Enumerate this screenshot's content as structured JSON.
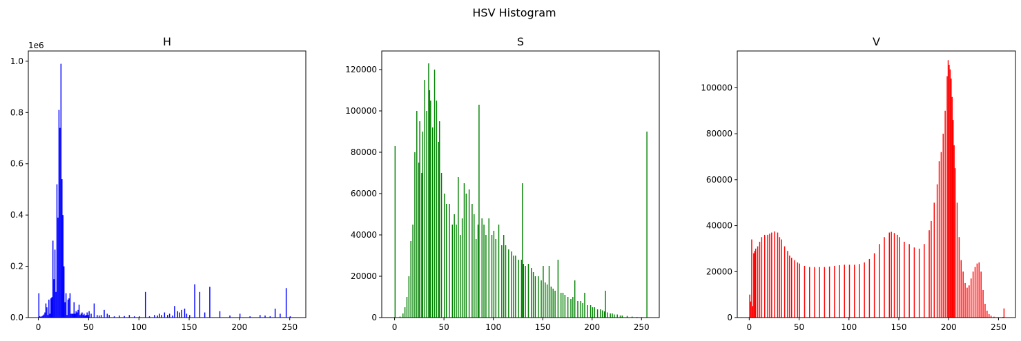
{
  "figure": {
    "suptitle": "HSV Histogram"
  },
  "chart_data": [
    {
      "type": "bar",
      "title": "H",
      "color": "#0000ff",
      "offset_text": "1e6",
      "xlim": [
        -10,
        266
      ],
      "ylim": [
        0,
        1040000
      ],
      "xticks": [
        0,
        50,
        100,
        150,
        200,
        250
      ],
      "yticks": [
        0,
        200000,
        400000,
        600000,
        800000,
        1000000
      ],
      "ytick_labels": [
        "0.0",
        "0.2",
        "0.4",
        "0.6",
        "0.8",
        "1.0"
      ],
      "grid": false,
      "x": [
        0,
        1,
        2,
        3,
        4,
        5,
        6,
        7,
        8,
        9,
        10,
        11,
        12,
        13,
        14,
        15,
        16,
        17,
        18,
        19,
        20,
        21,
        22,
        23,
        24,
        25,
        26,
        27,
        28,
        29,
        30,
        31,
        32,
        33,
        34,
        35,
        36,
        37,
        38,
        39,
        40,
        41,
        42,
        43,
        44,
        45,
        46,
        47,
        48,
        49,
        50,
        52,
        55,
        58,
        60,
        62,
        65,
        68,
        70,
        75,
        80,
        85,
        90,
        95,
        100,
        106,
        110,
        115,
        118,
        120,
        122,
        125,
        128,
        130,
        133,
        135,
        138,
        140,
        142,
        145,
        147,
        150,
        155,
        160,
        165,
        170,
        180,
        190,
        200,
        210,
        220,
        225,
        230,
        235,
        240,
        246,
        250
      ],
      "values": [
        95000,
        5000,
        3000,
        5000,
        8000,
        12000,
        20000,
        55000,
        40000,
        10000,
        70000,
        15000,
        75000,
        80000,
        300000,
        150000,
        265000,
        100000,
        520000,
        390000,
        810000,
        740000,
        990000,
        540000,
        400000,
        200000,
        60000,
        95000,
        10000,
        70000,
        75000,
        95000,
        15000,
        15000,
        15000,
        60000,
        15000,
        25000,
        20000,
        30000,
        50000,
        10000,
        15000,
        20000,
        10000,
        15000,
        8000,
        10000,
        20000,
        10000,
        25000,
        15000,
        55000,
        10000,
        8000,
        10000,
        30000,
        15000,
        10000,
        5000,
        8000,
        6000,
        10000,
        5000,
        5000,
        100000,
        5000,
        10000,
        8000,
        15000,
        10000,
        20000,
        10000,
        15000,
        8000,
        45000,
        25000,
        20000,
        30000,
        35000,
        15000,
        10000,
        130000,
        100000,
        20000,
        120000,
        25000,
        8000,
        15000,
        5000,
        10000,
        8000,
        5000,
        35000,
        15000,
        115000,
        5000
      ]
    },
    {
      "type": "bar",
      "title": "S",
      "color": "#008000",
      "offset_text": "",
      "xlim": [
        -13,
        268
      ],
      "ylim": [
        0,
        129000
      ],
      "xticks": [
        0,
        50,
        100,
        150,
        200,
        250
      ],
      "yticks": [
        0,
        20000,
        40000,
        60000,
        80000,
        100000,
        120000
      ],
      "ytick_labels": [
        "0",
        "20000",
        "40000",
        "60000",
        "80000",
        "100000",
        "120000"
      ],
      "grid": false,
      "x": [
        0,
        5,
        8,
        10,
        12,
        14,
        16,
        18,
        20,
        22,
        24,
        25,
        27,
        28,
        30,
        32,
        34,
        35,
        36,
        38,
        40,
        42,
        44,
        45,
        47,
        50,
        52,
        55,
        58,
        60,
        62,
        64,
        66,
        68,
        70,
        72,
        75,
        78,
        80,
        82,
        84,
        85,
        88,
        90,
        92,
        95,
        98,
        100,
        102,
        105,
        108,
        110,
        112,
        115,
        118,
        120,
        122,
        125,
        128,
        129,
        130,
        132,
        135,
        138,
        140,
        142,
        145,
        148,
        150,
        152,
        154,
        156,
        158,
        160,
        162,
        165,
        168,
        170,
        172,
        175,
        178,
        180,
        182,
        185,
        188,
        190,
        192,
        195,
        198,
        200,
        202,
        205,
        208,
        210,
        212,
        213,
        215,
        218,
        220,
        222,
        225,
        228,
        230,
        235,
        240,
        245,
        250,
        255
      ],
      "values": [
        83000,
        500,
        2000,
        5000,
        10000,
        20000,
        37000,
        45000,
        80000,
        100000,
        75000,
        95000,
        70000,
        90000,
        115000,
        100000,
        123000,
        110000,
        105000,
        92000,
        120000,
        105000,
        85000,
        95000,
        70000,
        60000,
        55000,
        55000,
        45000,
        50000,
        45000,
        68000,
        40000,
        48000,
        65000,
        60000,
        62000,
        55000,
        50000,
        38000,
        45000,
        103000,
        48000,
        45000,
        40000,
        48000,
        40000,
        42000,
        38000,
        45000,
        35000,
        40000,
        35000,
        33000,
        32000,
        30000,
        30000,
        28000,
        28000,
        65000,
        26000,
        25000,
        26000,
        24000,
        22000,
        20000,
        20000,
        18000,
        25000,
        17000,
        16000,
        25000,
        15000,
        14000,
        13000,
        28000,
        12000,
        12000,
        11000,
        10000,
        9000,
        10000,
        18000,
        8000,
        8000,
        7000,
        12000,
        6000,
        6000,
        5000,
        5000,
        4000,
        4000,
        3500,
        3000,
        13000,
        2500,
        2000,
        2000,
        1500,
        1500,
        1000,
        1000,
        800,
        500,
        300,
        200,
        90000
      ]
    },
    {
      "type": "bar",
      "title": "V",
      "color": "#ff0000",
      "offset_text": "",
      "xlim": [
        -12,
        267
      ],
      "ylim": [
        0,
        116000
      ],
      "xticks": [
        0,
        50,
        100,
        150,
        200,
        250
      ],
      "yticks": [
        0,
        20000,
        40000,
        60000,
        80000,
        100000
      ],
      "ytick_labels": [
        "0",
        "20000",
        "40000",
        "60000",
        "80000",
        "100000"
      ],
      "grid": false,
      "x": [
        0,
        1,
        2,
        3,
        4,
        5,
        6,
        8,
        10,
        12,
        15,
        18,
        20,
        22,
        25,
        28,
        30,
        32,
        35,
        38,
        40,
        42,
        45,
        48,
        50,
        55,
        60,
        65,
        70,
        75,
        80,
        85,
        90,
        95,
        100,
        105,
        110,
        115,
        120,
        125,
        130,
        135,
        140,
        142,
        145,
        148,
        150,
        155,
        160,
        165,
        170,
        175,
        180,
        182,
        185,
        188,
        190,
        192,
        194,
        196,
        198,
        199,
        200,
        201,
        202,
        203,
        204,
        205,
        206,
        208,
        210,
        212,
        214,
        216,
        218,
        220,
        222,
        224,
        226,
        228,
        230,
        232,
        234,
        236,
        238,
        240,
        242,
        245,
        248,
        250,
        252,
        254,
        255
      ],
      "values": [
        10000,
        7000,
        34000,
        5000,
        28000,
        29000,
        30000,
        31000,
        33000,
        35000,
        36000,
        36000,
        36500,
        37000,
        37500,
        37000,
        35000,
        34000,
        31000,
        29000,
        27000,
        26000,
        25000,
        24000,
        23500,
        22500,
        22000,
        22000,
        22000,
        22000,
        22200,
        22500,
        22800,
        23000,
        23000,
        23000,
        23300,
        24000,
        25500,
        28000,
        32000,
        35000,
        37000,
        37300,
        36800,
        36000,
        35000,
        33000,
        32000,
        30500,
        30000,
        32000,
        38000,
        42000,
        50000,
        58000,
        68000,
        72000,
        80000,
        90000,
        105000,
        112000,
        110000,
        108000,
        104000,
        96000,
        86000,
        75000,
        65000,
        50000,
        35000,
        25000,
        20000,
        15000,
        13000,
        14000,
        17000,
        20000,
        22000,
        23500,
        24000,
        20000,
        12000,
        6000,
        3000,
        1500,
        800,
        400,
        200,
        100,
        50,
        300,
        4000
      ]
    }
  ]
}
